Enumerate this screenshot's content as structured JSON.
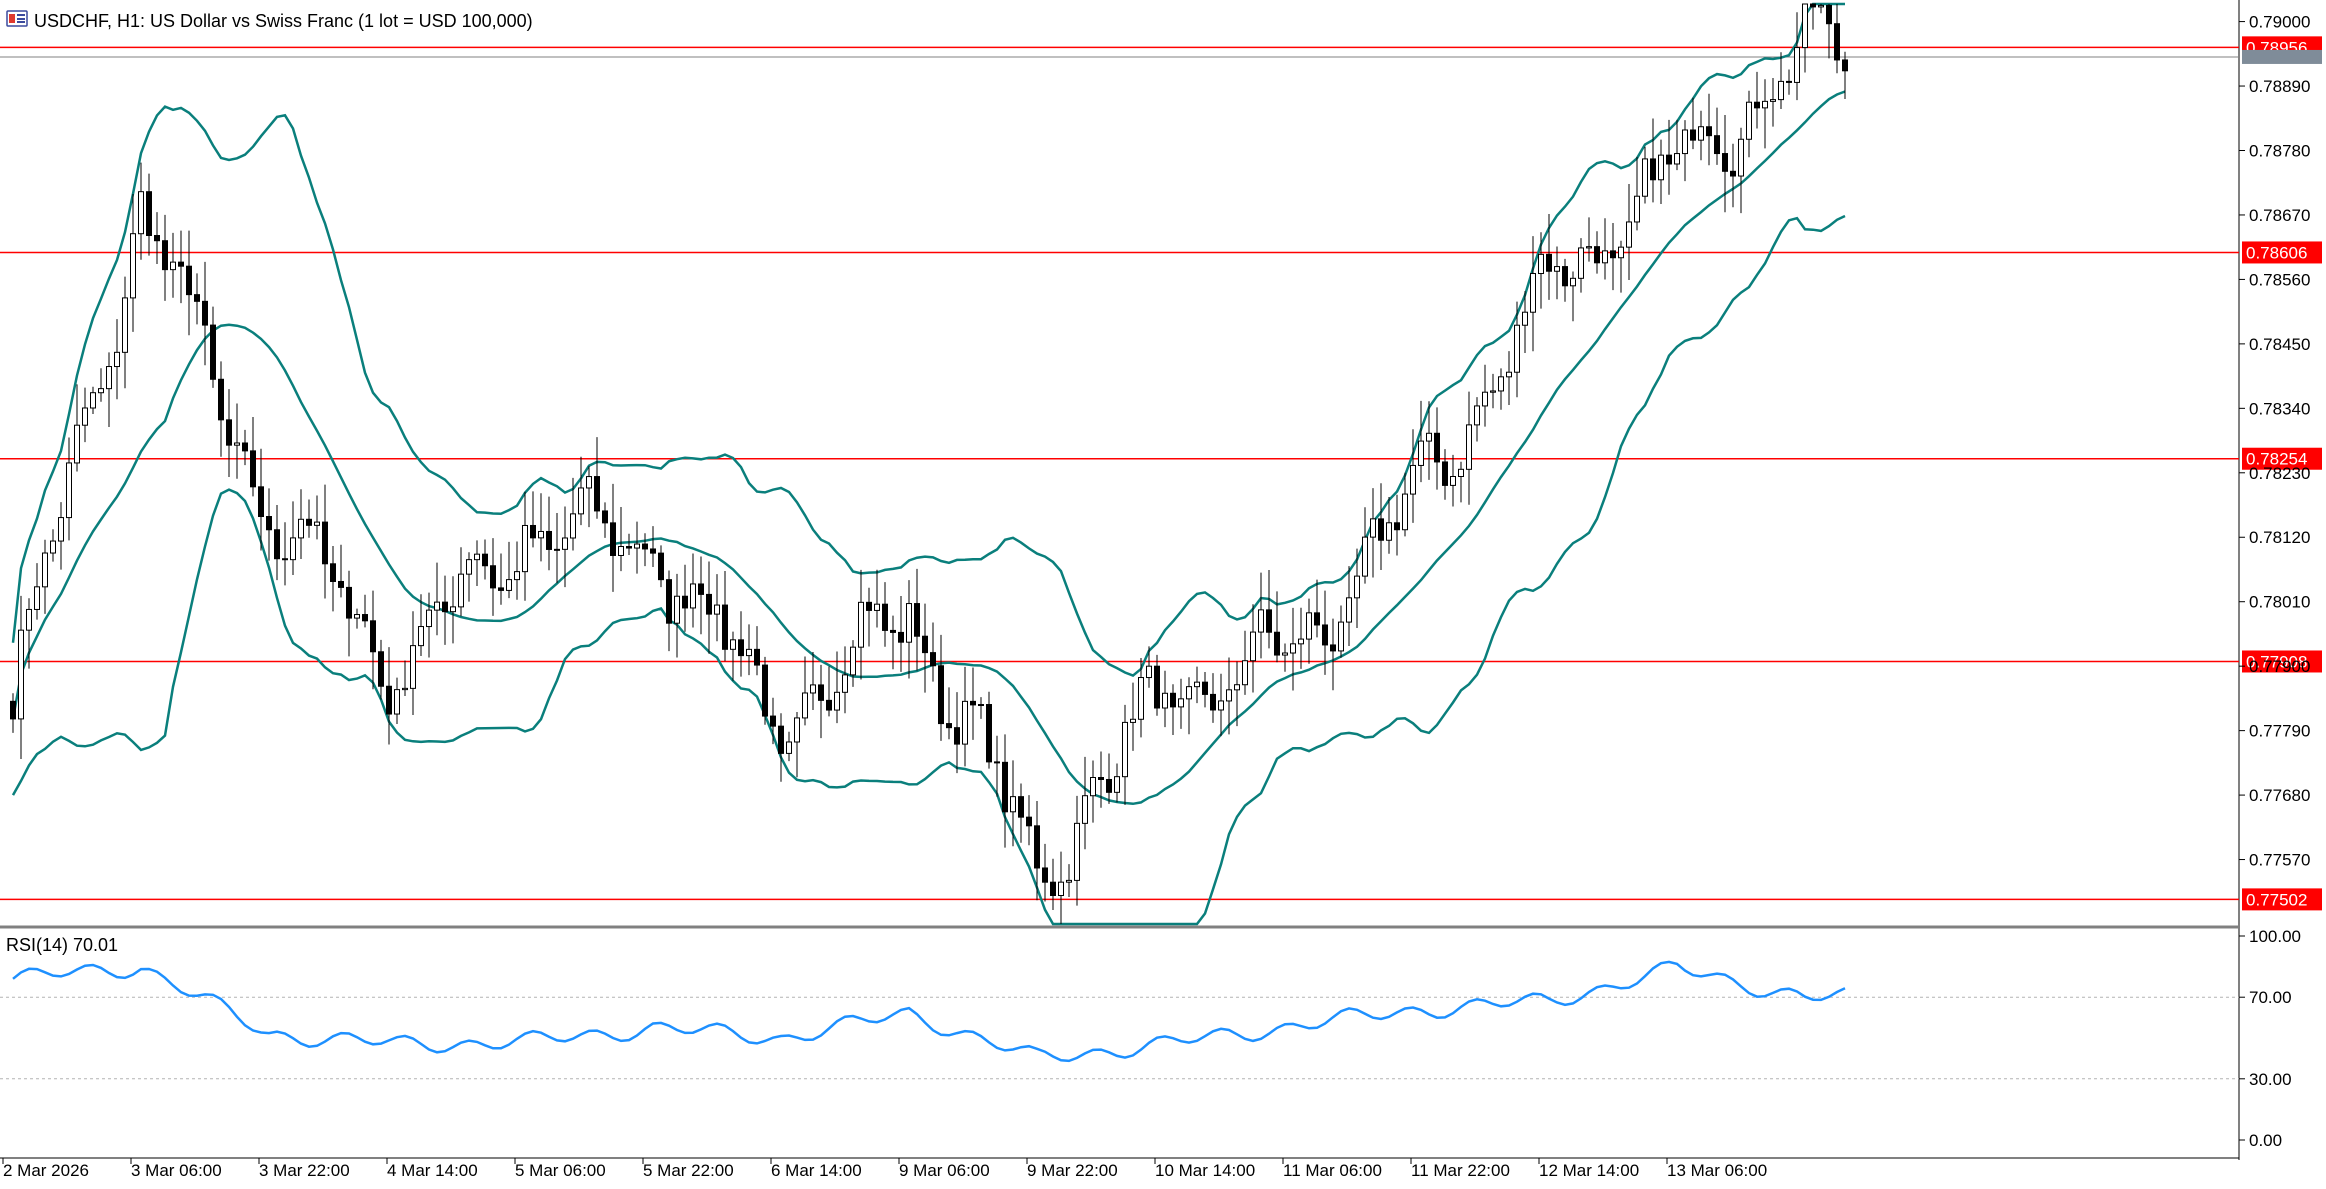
{
  "title": "USDCHF, H1:  US Dollar vs Swiss Franc (1 lot = USD 100,000)",
  "icon": "chart-window-icon",
  "colors": {
    "background": "#ffffff",
    "grid": "#c8c8c8",
    "frame": "#000000",
    "bull_body": "#ffffff",
    "bear_body": "#000000",
    "candle_outline": "#000000",
    "bollinger": "#0a7f7c",
    "level_line": "#ff0000",
    "level_tag_bg": "#ff0000",
    "level_tag_text": "#ffffff",
    "rsi_line": "#1e90ff",
    "rsi_levels": "#b4b4b4",
    "axis_text": "#000000"
  },
  "chart_data": [
    {
      "type": "candlestick",
      "symbol": "USDCHF",
      "timeframe": "H1",
      "title": "USDCHF, H1:  US Dollar vs Swiss Franc (1 lot = USD 100,000)",
      "ylim": [
        0.7746,
        0.7903
      ],
      "y_ticks": [
        "0.79000",
        "0.78890",
        "0.78780",
        "0.78670",
        "0.78560",
        "0.78450",
        "0.78340",
        "0.78230",
        "0.78120",
        "0.78010",
        "0.77900",
        "0.77790",
        "0.77680",
        "0.77570"
      ],
      "x_ticks": [
        "2 Mar 2026",
        "3 Mar 06:00",
        "3 Mar 22:00",
        "4 Mar 14:00",
        "5 Mar 06:00",
        "5 Mar 22:00",
        "6 Mar 14:00",
        "9 Mar 06:00",
        "9 Mar 22:00",
        "10 Mar 14:00",
        "11 Mar 06:00",
        "11 Mar 22:00",
        "12 Mar 14:00",
        "13 Mar 06:00"
      ],
      "horizontal_levels": [
        "0.78956",
        "0.78606",
        "0.78254",
        "0.77908",
        "0.77502"
      ],
      "bid_label": "0.78955",
      "indicators": [
        "Bollinger Bands"
      ],
      "price_anchors": {
        "comment": "approximate close prices read off the chart at each time-axis label",
        "labels": [
          "2 Mar 2026",
          "3 Mar 06:00",
          "3 Mar 22:00",
          "4 Mar 14:00",
          "5 Mar 06:00",
          "5 Mar 22:00",
          "6 Mar 14:00",
          "9 Mar 06:00",
          "9 Mar 22:00",
          "10 Mar 14:00",
          "11 Mar 06:00",
          "11 Mar 22:00",
          "12 Mar 14:00",
          "13 Mar 06:00",
          "last"
        ],
        "close": [
          0.7784,
          0.7868,
          0.7816,
          0.779,
          0.7813,
          0.7811,
          0.778,
          0.78,
          0.7755,
          0.7785,
          0.7792,
          0.782,
          0.7855,
          0.7875,
          0.7895
        ]
      }
    },
    {
      "type": "line",
      "name": "RSI(14)",
      "label": "RSI(14) 70.01",
      "current_value": "70.01",
      "ylim": [
        0,
        100
      ],
      "y_ticks": [
        "100.00",
        "70.00",
        "30.00",
        "0.00"
      ],
      "levels": [
        70,
        30
      ],
      "anchors": {
        "labels": [
          "2 Mar 2026",
          "3 Mar 06:00",
          "3 Mar 22:00",
          "4 Mar 14:00",
          "5 Mar 06:00",
          "5 Mar 22:00",
          "6 Mar 14:00",
          "9 Mar 06:00",
          "9 Mar 22:00",
          "10 Mar 14:00",
          "11 Mar 06:00",
          "11 Mar 22:00",
          "12 Mar 14:00",
          "13 Mar 06:00",
          "last"
        ],
        "values": [
          79,
          85,
          52,
          47,
          48,
          55,
          50,
          62,
          40,
          47,
          56,
          64,
          68,
          84,
          70
        ]
      }
    }
  ]
}
